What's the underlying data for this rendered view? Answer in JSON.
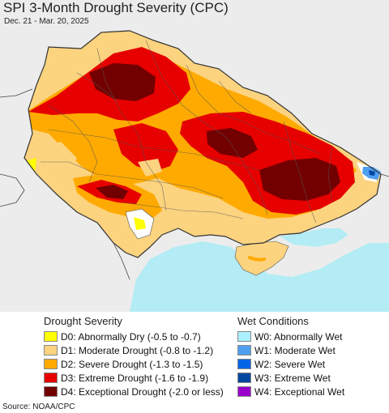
{
  "title": "SPI 3-Month Drought Severity (CPC)",
  "date_range": "Dec. 21 - Mar. 20, 2025",
  "source": "Source: NOAA/CPC",
  "drought_legend": {
    "heading": "Drought Severity",
    "items": [
      {
        "label": "D0: Abnormally Dry (-0.5 to -0.7)",
        "color": "#ffff00"
      },
      {
        "label": "D1: Moderate Drought (-0.8 to -1.2)",
        "color": "#fcd37f"
      },
      {
        "label": "D2: Severe Drought (-1.3 to -1.5)",
        "color": "#ffaa00"
      },
      {
        "label": "D3: Extreme Drought (-1.6 to -1.9)",
        "color": "#e60000"
      },
      {
        "label": "D4: Exceptional Drought (-2.0 or less)",
        "color": "#730000"
      }
    ]
  },
  "wet_legend": {
    "heading": "Wet Conditions",
    "items": [
      {
        "label": "W0: Abnormally Wet",
        "color": "#aaf0ff"
      },
      {
        "label": "W1: Moderate Wet",
        "color": "#4f9ff0"
      },
      {
        "label": "W2: Severe Wet",
        "color": "#0064e6"
      },
      {
        "label": "W3: Extreme Wet",
        "color": "#0046a0"
      },
      {
        "label": "W4: Exceptional Wet",
        "color": "#9900cc"
      }
    ]
  },
  "map_colors": {
    "background": "#ececec",
    "sea": "#b3ecf5",
    "border": "#555555"
  }
}
